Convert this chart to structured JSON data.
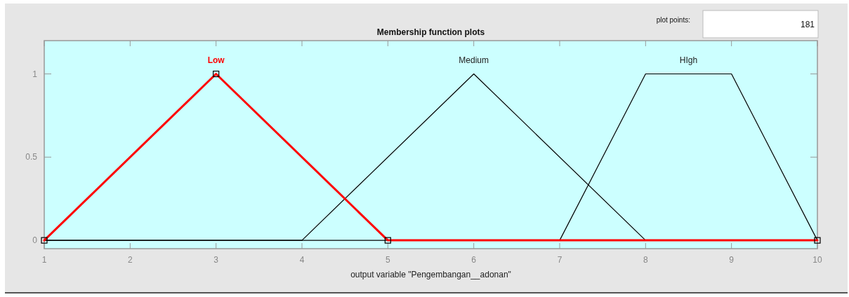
{
  "chart_data": {
    "type": "line",
    "title": "Membership function plots",
    "xlabel": "output variable \"Pengembangan__adonan\"",
    "annotations": [
      "plot points:",
      "181"
    ],
    "series": [
      {
        "name": "Medium",
        "color": "#000000",
        "x": [
          1,
          4,
          6,
          8,
          10
        ],
        "values": [
          0,
          0,
          1,
          0,
          0
        ]
      },
      {
        "name": "HIgh",
        "color": "#000000",
        "x": [
          1,
          7,
          8,
          9,
          10
        ],
        "values": [
          0,
          0,
          1,
          1,
          0
        ]
      },
      {
        "name": "Low",
        "color": "#ff0000",
        "x": [
          1,
          3,
          5,
          10
        ],
        "values": [
          0,
          1,
          0,
          0
        ],
        "marker": "square"
      }
    ],
    "xlim": [
      1,
      10
    ],
    "xticks": [
      1,
      2,
      3,
      4,
      5,
      6,
      7,
      8,
      9,
      10
    ],
    "ylim": [
      -0.05,
      1.2
    ],
    "yticks": [
      0,
      0.5,
      1
    ],
    "grid": false,
    "line_style": "solid"
  }
}
